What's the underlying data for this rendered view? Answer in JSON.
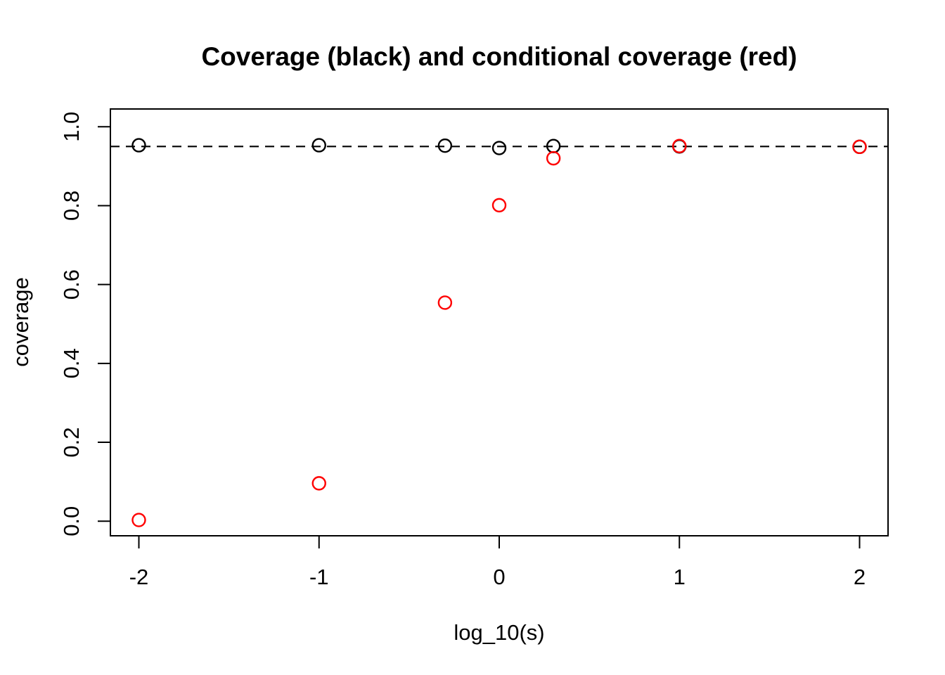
{
  "page": {
    "background": "#FFFFFF"
  },
  "chart_data": {
    "type": "scatter",
    "title": "Coverage (black) and conditional coverage (red)",
    "xlabel": "log_10(s)",
    "ylabel": "coverage",
    "xlim": [
      -2.158,
      2.158
    ],
    "ylim": [
      -0.037,
      1.045
    ],
    "x_ticks": {
      "values": [
        -2,
        -1,
        0,
        1,
        2
      ],
      "labels": [
        "-2",
        "-1",
        "0",
        "1",
        "2"
      ]
    },
    "y_ticks": {
      "values": [
        0.0,
        0.2,
        0.4,
        0.6,
        0.8,
        1.0
      ],
      "labels": [
        "0.0",
        "0.2",
        "0.4",
        "0.6",
        "0.8",
        "1.0"
      ]
    },
    "grid": false,
    "legend_position": "none",
    "reference_line": {
      "y": 0.95,
      "style": "dashed",
      "color": "#000000"
    },
    "x": [
      -2,
      -1,
      -0.301,
      0,
      0.301,
      1,
      2
    ],
    "series": [
      {
        "name": "coverage (black)",
        "color": "#000000",
        "marker": "open-circle",
        "values": [
          0.953,
          0.953,
          0.952,
          0.946,
          0.951,
          0.95,
          0.949
        ]
      },
      {
        "name": "conditional coverage (red)",
        "color": "#FF0000",
        "marker": "open-circle",
        "values": [
          0.003,
          0.096,
          0.554,
          0.801,
          0.92,
          0.951,
          0.949
        ]
      }
    ]
  }
}
